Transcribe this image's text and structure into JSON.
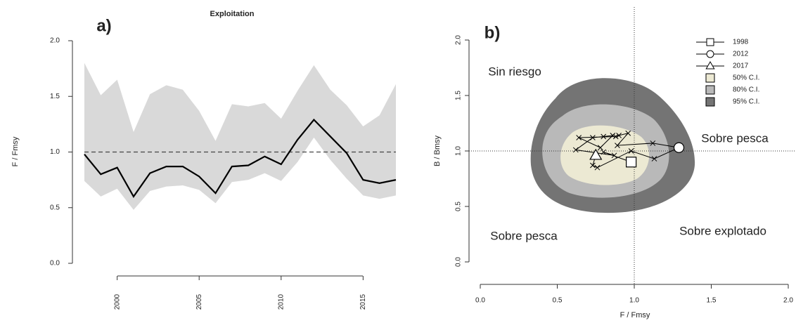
{
  "chart_data": [
    {
      "type": "line",
      "panel_label": "a)",
      "title": "Exploitation",
      "ylabel": "F / Fmsy",
      "x": [
        1998,
        1999,
        2000,
        2001,
        2002,
        2003,
        2004,
        2005,
        2006,
        2007,
        2008,
        2009,
        2010,
        2011,
        2012,
        2013,
        2014,
        2015,
        2016,
        2017
      ],
      "xlim": [
        1998,
        2017
      ],
      "xticks": [
        2000,
        2005,
        2010,
        2015
      ],
      "ylim": [
        0,
        2
      ],
      "yticks": [
        {
          "value": 0,
          "label": "0.0"
        },
        {
          "value": 0.5,
          "label": "0.5"
        },
        {
          "value": 1,
          "label": "1.0"
        },
        {
          "value": 1.5,
          "label": "1.5"
        },
        {
          "value": 2,
          "label": "2.0"
        }
      ],
      "series": [
        {
          "color": "#000000",
          "values": [
            0.98,
            0.8,
            0.86,
            0.6,
            0.81,
            0.87,
            0.87,
            0.78,
            0.63,
            0.87,
            0.88,
            0.96,
            0.89,
            1.11,
            1.29,
            1.14,
            0.99,
            0.75,
            0.72,
            0.75
          ]
        }
      ],
      "band": {
        "color": "#d9d9d9",
        "upper": [
          1.8,
          1.51,
          1.65,
          1.18,
          1.52,
          1.6,
          1.56,
          1.37,
          1.1,
          1.43,
          1.41,
          1.44,
          1.3,
          1.55,
          1.78,
          1.56,
          1.42,
          1.23,
          1.33,
          1.61
        ],
        "lower": [
          0.74,
          0.6,
          0.67,
          0.48,
          0.65,
          0.69,
          0.7,
          0.66,
          0.54,
          0.73,
          0.75,
          0.81,
          0.74,
          0.91,
          1.13,
          0.93,
          0.76,
          0.61,
          0.58,
          0.61
        ]
      },
      "reference_y": 1,
      "reference_style": "dashed"
    },
    {
      "type": "kobe",
      "panel_label": "b)",
      "xlabel": "F / Fmsy",
      "ylabel": "B / Bmsy",
      "xlim": [
        0,
        2
      ],
      "ylim": [
        0,
        2
      ],
      "xticks": [
        {
          "value": 0,
          "label": "0.0"
        },
        {
          "value": 0.5,
          "label": "0.5"
        },
        {
          "value": 1,
          "label": "1.0"
        },
        {
          "value": 1.5,
          "label": "1.5"
        },
        {
          "value": 2,
          "label": "2.0"
        }
      ],
      "yticks": [
        {
          "value": 0,
          "label": "0.0"
        },
        {
          "value": 0.5,
          "label": "0.5"
        },
        {
          "value": 1,
          "label": "1.0"
        },
        {
          "value": 1.5,
          "label": "1.5"
        },
        {
          "value": 2,
          "label": "2.0"
        }
      ],
      "trajectory": {
        "x": [
          0.98,
          0.8,
          0.87,
          0.62,
          0.73,
          0.8,
          0.86,
          0.78,
          0.64,
          0.88,
          0.9,
          0.96,
          0.89,
          1.12,
          1.29,
          1.13,
          0.98,
          0.76,
          0.73,
          0.75
        ],
        "y": [
          0.9,
          0.99,
          0.96,
          1.01,
          1.12,
          1.13,
          1.14,
          1.03,
          1.12,
          1.13,
          1.14,
          1.16,
          1.05,
          1.07,
          1.03,
          0.93,
          1.0,
          0.85,
          0.87,
          0.96
        ]
      },
      "points": [
        {
          "name": "1998",
          "marker": "square",
          "x": 0.98,
          "y": 0.9
        },
        {
          "name": "2012",
          "marker": "circle",
          "x": 1.29,
          "y": 1.03
        },
        {
          "name": "2017",
          "marker": "triangle",
          "x": 0.75,
          "y": 0.96
        }
      ],
      "regions": [
        {
          "name": "50% C.I.",
          "color": "#ece9d3"
        },
        {
          "name": "80% C.I.",
          "color": "#b9b9b9"
        },
        {
          "name": "95% C.I.",
          "color": "#747474"
        }
      ],
      "zone_labels": {
        "top_left": "Sin riesgo",
        "top_right": "Sobre pesca",
        "bottom_left": "Sobre pesca",
        "bottom_right": "Sobre explotado"
      },
      "reference_x": 1,
      "reference_y": 1
    }
  ]
}
